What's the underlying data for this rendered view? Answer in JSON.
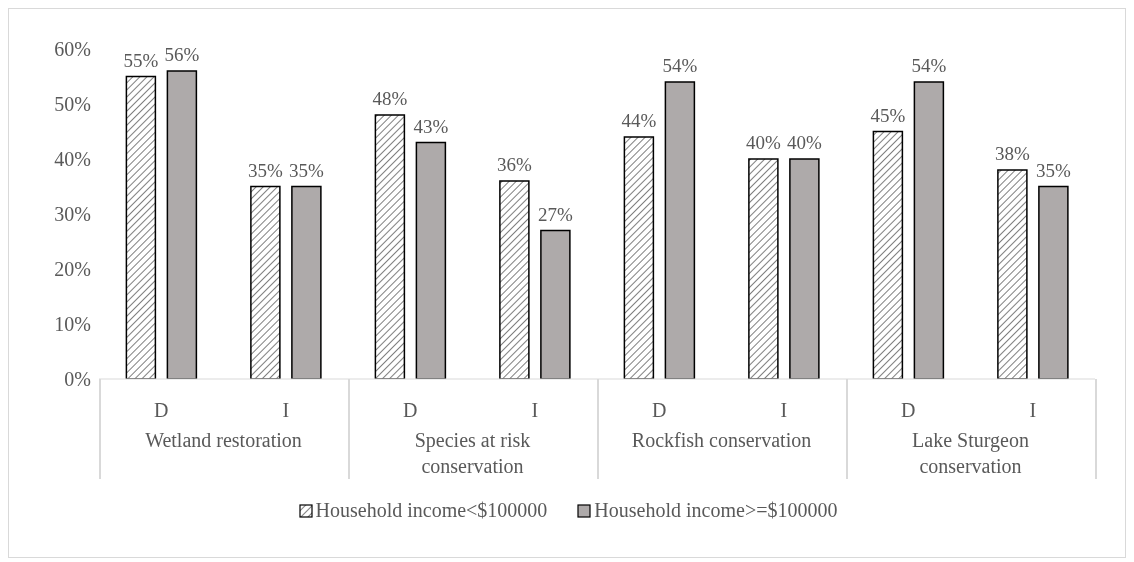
{
  "chart_data": {
    "type": "bar",
    "categories": [
      "D",
      "I",
      "D",
      "I",
      "D",
      "I",
      "D",
      "I"
    ],
    "series": [
      {
        "name": "Household income<$100000",
        "color": "#000000",
        "values": [
          55,
          35,
          48,
          36,
          44,
          40,
          45,
          38
        ],
        "value_labels": [
          "55%",
          "35%",
          "48%",
          "36%",
          "44%",
          "40%",
          "45%",
          "38%"
        ]
      },
      {
        "name": "Household income>=$100000",
        "color": "#aeaaaa",
        "values": [
          56,
          35,
          43,
          27,
          54,
          40,
          54,
          35
        ],
        "value_labels": [
          "56%",
          "35%",
          "43%",
          "27%",
          "54%",
          "40%",
          "54%",
          "35%"
        ]
      }
    ],
    "annotations": [
      "Wetland restoration",
      "Species at risk conservation",
      "Rockfish conservation",
      "Lake Sturgeon conservation"
    ],
    "ylim": [
      0,
      60
    ],
    "yticks": [
      {
        "value": 0,
        "label": "0%"
      },
      {
        "value": 10,
        "label": "10%"
      },
      {
        "value": 20,
        "label": "20%"
      },
      {
        "value": 30,
        "label": "30%"
      },
      {
        "value": 40,
        "label": "40%"
      },
      {
        "value": 50,
        "label": "50%"
      },
      {
        "value": 60,
        "label": "60%"
      }
    ],
    "grid": false,
    "legend": "bottom"
  }
}
